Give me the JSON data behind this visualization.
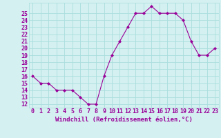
{
  "x": [
    0,
    1,
    2,
    3,
    4,
    5,
    6,
    7,
    8,
    9,
    10,
    11,
    12,
    13,
    14,
    15,
    16,
    17,
    18,
    19,
    20,
    21,
    22,
    23
  ],
  "y": [
    16,
    15,
    15,
    14,
    14,
    14,
    13,
    12,
    12,
    16,
    19,
    21,
    23,
    25,
    25,
    26,
    25,
    25,
    25,
    24,
    21,
    19,
    19,
    20
  ],
  "line_color": "#990099",
  "marker": "D",
  "marker_size": 2,
  "bg_color": "#d4f0f0",
  "grid_color": "#aadddd",
  "xlabel": "Windchill (Refroidissement éolien,°C)",
  "xlim": [
    -0.5,
    23.5
  ],
  "ylim": [
    11.5,
    26.5
  ],
  "yticks": [
    12,
    13,
    14,
    15,
    16,
    17,
    18,
    19,
    20,
    21,
    22,
    23,
    24,
    25
  ],
  "xticks": [
    0,
    1,
    2,
    3,
    4,
    5,
    6,
    7,
    8,
    9,
    10,
    11,
    12,
    13,
    14,
    15,
    16,
    17,
    18,
    19,
    20,
    21,
    22,
    23
  ],
  "xlabel_fontsize": 6.5,
  "tick_fontsize": 6,
  "label_color": "#990099"
}
